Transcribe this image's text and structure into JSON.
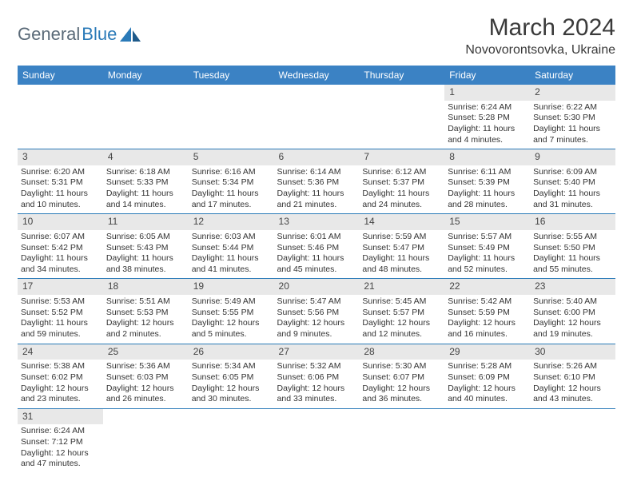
{
  "logo": {
    "text1": "General",
    "text2": "Blue"
  },
  "title": "March 2024",
  "location": "Novovorontsovka, Ukraine",
  "colors": {
    "headerBg": "#3b82c4",
    "headerText": "#ffffff",
    "dayNumBg": "#e8e8e8",
    "borderColor": "#2a7ab8",
    "logoGray": "#5a6a78",
    "logoBlue": "#2a7ab8",
    "pageBg": "#ffffff"
  },
  "weekdays": [
    "Sunday",
    "Monday",
    "Tuesday",
    "Wednesday",
    "Thursday",
    "Friday",
    "Saturday"
  ],
  "weeks": [
    [
      {
        "n": "",
        "sr": "",
        "ss": "",
        "dl": ""
      },
      {
        "n": "",
        "sr": "",
        "ss": "",
        "dl": ""
      },
      {
        "n": "",
        "sr": "",
        "ss": "",
        "dl": ""
      },
      {
        "n": "",
        "sr": "",
        "ss": "",
        "dl": ""
      },
      {
        "n": "",
        "sr": "",
        "ss": "",
        "dl": ""
      },
      {
        "n": "1",
        "sr": "Sunrise: 6:24 AM",
        "ss": "Sunset: 5:28 PM",
        "dl": "Daylight: 11 hours and 4 minutes."
      },
      {
        "n": "2",
        "sr": "Sunrise: 6:22 AM",
        "ss": "Sunset: 5:30 PM",
        "dl": "Daylight: 11 hours and 7 minutes."
      }
    ],
    [
      {
        "n": "3",
        "sr": "Sunrise: 6:20 AM",
        "ss": "Sunset: 5:31 PM",
        "dl": "Daylight: 11 hours and 10 minutes."
      },
      {
        "n": "4",
        "sr": "Sunrise: 6:18 AM",
        "ss": "Sunset: 5:33 PM",
        "dl": "Daylight: 11 hours and 14 minutes."
      },
      {
        "n": "5",
        "sr": "Sunrise: 6:16 AM",
        "ss": "Sunset: 5:34 PM",
        "dl": "Daylight: 11 hours and 17 minutes."
      },
      {
        "n": "6",
        "sr": "Sunrise: 6:14 AM",
        "ss": "Sunset: 5:36 PM",
        "dl": "Daylight: 11 hours and 21 minutes."
      },
      {
        "n": "7",
        "sr": "Sunrise: 6:12 AM",
        "ss": "Sunset: 5:37 PM",
        "dl": "Daylight: 11 hours and 24 minutes."
      },
      {
        "n": "8",
        "sr": "Sunrise: 6:11 AM",
        "ss": "Sunset: 5:39 PM",
        "dl": "Daylight: 11 hours and 28 minutes."
      },
      {
        "n": "9",
        "sr": "Sunrise: 6:09 AM",
        "ss": "Sunset: 5:40 PM",
        "dl": "Daylight: 11 hours and 31 minutes."
      }
    ],
    [
      {
        "n": "10",
        "sr": "Sunrise: 6:07 AM",
        "ss": "Sunset: 5:42 PM",
        "dl": "Daylight: 11 hours and 34 minutes."
      },
      {
        "n": "11",
        "sr": "Sunrise: 6:05 AM",
        "ss": "Sunset: 5:43 PM",
        "dl": "Daylight: 11 hours and 38 minutes."
      },
      {
        "n": "12",
        "sr": "Sunrise: 6:03 AM",
        "ss": "Sunset: 5:44 PM",
        "dl": "Daylight: 11 hours and 41 minutes."
      },
      {
        "n": "13",
        "sr": "Sunrise: 6:01 AM",
        "ss": "Sunset: 5:46 PM",
        "dl": "Daylight: 11 hours and 45 minutes."
      },
      {
        "n": "14",
        "sr": "Sunrise: 5:59 AM",
        "ss": "Sunset: 5:47 PM",
        "dl": "Daylight: 11 hours and 48 minutes."
      },
      {
        "n": "15",
        "sr": "Sunrise: 5:57 AM",
        "ss": "Sunset: 5:49 PM",
        "dl": "Daylight: 11 hours and 52 minutes."
      },
      {
        "n": "16",
        "sr": "Sunrise: 5:55 AM",
        "ss": "Sunset: 5:50 PM",
        "dl": "Daylight: 11 hours and 55 minutes."
      }
    ],
    [
      {
        "n": "17",
        "sr": "Sunrise: 5:53 AM",
        "ss": "Sunset: 5:52 PM",
        "dl": "Daylight: 11 hours and 59 minutes."
      },
      {
        "n": "18",
        "sr": "Sunrise: 5:51 AM",
        "ss": "Sunset: 5:53 PM",
        "dl": "Daylight: 12 hours and 2 minutes."
      },
      {
        "n": "19",
        "sr": "Sunrise: 5:49 AM",
        "ss": "Sunset: 5:55 PM",
        "dl": "Daylight: 12 hours and 5 minutes."
      },
      {
        "n": "20",
        "sr": "Sunrise: 5:47 AM",
        "ss": "Sunset: 5:56 PM",
        "dl": "Daylight: 12 hours and 9 minutes."
      },
      {
        "n": "21",
        "sr": "Sunrise: 5:45 AM",
        "ss": "Sunset: 5:57 PM",
        "dl": "Daylight: 12 hours and 12 minutes."
      },
      {
        "n": "22",
        "sr": "Sunrise: 5:42 AM",
        "ss": "Sunset: 5:59 PM",
        "dl": "Daylight: 12 hours and 16 minutes."
      },
      {
        "n": "23",
        "sr": "Sunrise: 5:40 AM",
        "ss": "Sunset: 6:00 PM",
        "dl": "Daylight: 12 hours and 19 minutes."
      }
    ],
    [
      {
        "n": "24",
        "sr": "Sunrise: 5:38 AM",
        "ss": "Sunset: 6:02 PM",
        "dl": "Daylight: 12 hours and 23 minutes."
      },
      {
        "n": "25",
        "sr": "Sunrise: 5:36 AM",
        "ss": "Sunset: 6:03 PM",
        "dl": "Daylight: 12 hours and 26 minutes."
      },
      {
        "n": "26",
        "sr": "Sunrise: 5:34 AM",
        "ss": "Sunset: 6:05 PM",
        "dl": "Daylight: 12 hours and 30 minutes."
      },
      {
        "n": "27",
        "sr": "Sunrise: 5:32 AM",
        "ss": "Sunset: 6:06 PM",
        "dl": "Daylight: 12 hours and 33 minutes."
      },
      {
        "n": "28",
        "sr": "Sunrise: 5:30 AM",
        "ss": "Sunset: 6:07 PM",
        "dl": "Daylight: 12 hours and 36 minutes."
      },
      {
        "n": "29",
        "sr": "Sunrise: 5:28 AM",
        "ss": "Sunset: 6:09 PM",
        "dl": "Daylight: 12 hours and 40 minutes."
      },
      {
        "n": "30",
        "sr": "Sunrise: 5:26 AM",
        "ss": "Sunset: 6:10 PM",
        "dl": "Daylight: 12 hours and 43 minutes."
      }
    ],
    [
      {
        "n": "31",
        "sr": "Sunrise: 6:24 AM",
        "ss": "Sunset: 7:12 PM",
        "dl": "Daylight: 12 hours and 47 minutes."
      },
      {
        "n": "",
        "sr": "",
        "ss": "",
        "dl": ""
      },
      {
        "n": "",
        "sr": "",
        "ss": "",
        "dl": ""
      },
      {
        "n": "",
        "sr": "",
        "ss": "",
        "dl": ""
      },
      {
        "n": "",
        "sr": "",
        "ss": "",
        "dl": ""
      },
      {
        "n": "",
        "sr": "",
        "ss": "",
        "dl": ""
      },
      {
        "n": "",
        "sr": "",
        "ss": "",
        "dl": ""
      }
    ]
  ]
}
